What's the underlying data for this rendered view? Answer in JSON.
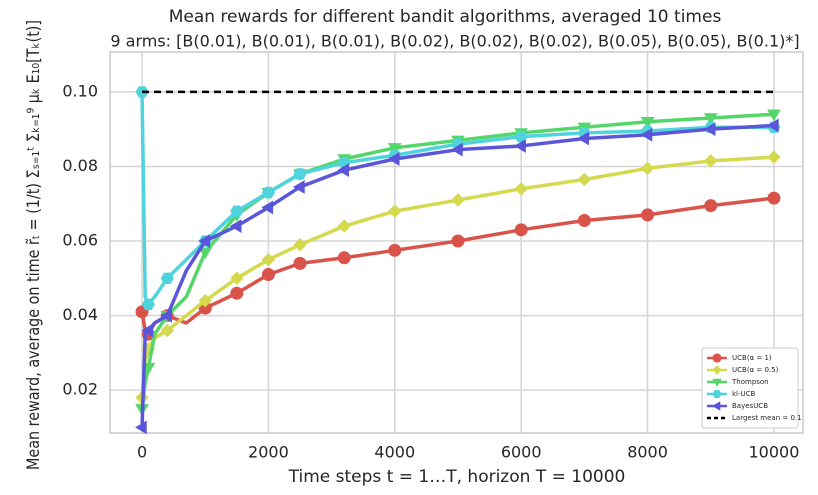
{
  "chart_data": {
    "type": "line",
    "title": "Mean rewards for different bandit algorithms, averaged 10 times",
    "subtitle": "9 arms: [B(0.01), B(0.01), B(0.01), B(0.02), B(0.02), B(0.02), B(0.05), B(0.05), B(0.1)*]",
    "x_label": "Time steps t = 1…T, horizon T = 10000",
    "y_label": "Mean reward, average on time r̃ₜ = (1/t) Σₛ₌₁ᵗ Σₖ₌₁⁹ μₖ E₁₀[Tₖ(t)]",
    "x": [
      0,
      50,
      100,
      200,
      400,
      700,
      1000,
      1500,
      2000,
      2500,
      3200,
      4000,
      5000,
      6000,
      7000,
      8000,
      9000,
      10000
    ],
    "series": [
      {
        "name": "UCB(α = 1)",
        "color": "#d9534a",
        "marker": "circle",
        "values": [
          0.041,
          0.036,
          0.035,
          0.038,
          0.04,
          0.038,
          0.042,
          0.046,
          0.051,
          0.054,
          0.0555,
          0.0575,
          0.06,
          0.063,
          0.0655,
          0.067,
          0.0695,
          0.0715
        ]
      },
      {
        "name": "UCB(α = 0.5)",
        "color": "#d4d94e",
        "marker": "diamond",
        "values": [
          0.018,
          0.028,
          0.031,
          0.034,
          0.036,
          0.04,
          0.044,
          0.05,
          0.055,
          0.059,
          0.064,
          0.068,
          0.071,
          0.074,
          0.0765,
          0.0795,
          0.0815,
          0.0825
        ]
      },
      {
        "name": "Thompson",
        "color": "#55d66a",
        "marker": "triangle-down",
        "values": [
          0.015,
          0.022,
          0.026,
          0.035,
          0.04,
          0.045,
          0.057,
          0.067,
          0.073,
          0.078,
          0.082,
          0.085,
          0.087,
          0.089,
          0.0905,
          0.092,
          0.093,
          0.094
        ]
      },
      {
        "name": "kl-UCB",
        "color": "#4fd3dd",
        "marker": "hexagon",
        "values": [
          0.1,
          0.045,
          0.043,
          0.045,
          0.05,
          0.055,
          0.06,
          0.068,
          0.073,
          0.078,
          0.081,
          0.083,
          0.086,
          0.088,
          0.089,
          0.0895,
          0.0905,
          0.0905
        ]
      },
      {
        "name": "BayesUCB",
        "color": "#5a55d9",
        "marker": "triangle-left",
        "values": [
          0.01,
          0.035,
          0.036,
          0.038,
          0.04,
          0.052,
          0.06,
          0.064,
          0.069,
          0.0745,
          0.079,
          0.082,
          0.0845,
          0.0855,
          0.0875,
          0.0885,
          0.09,
          0.091
        ]
      }
    ],
    "reference": {
      "name": "Largest mean = 0.1",
      "color": "#000000",
      "dash": true,
      "x": [
        0,
        10000
      ],
      "values": [
        0.1,
        0.1
      ]
    },
    "xlim": [
      -507,
      10460
    ],
    "ylim": [
      0.0085,
      0.1107
    ],
    "xticks": [
      0,
      2000,
      4000,
      6000,
      8000,
      10000
    ],
    "yticks": [
      0.02,
      0.04,
      0.06,
      0.08,
      {
        "value": 0.1,
        "label": "0.10"
      }
    ],
    "grid": true,
    "legend": "lower right"
  }
}
